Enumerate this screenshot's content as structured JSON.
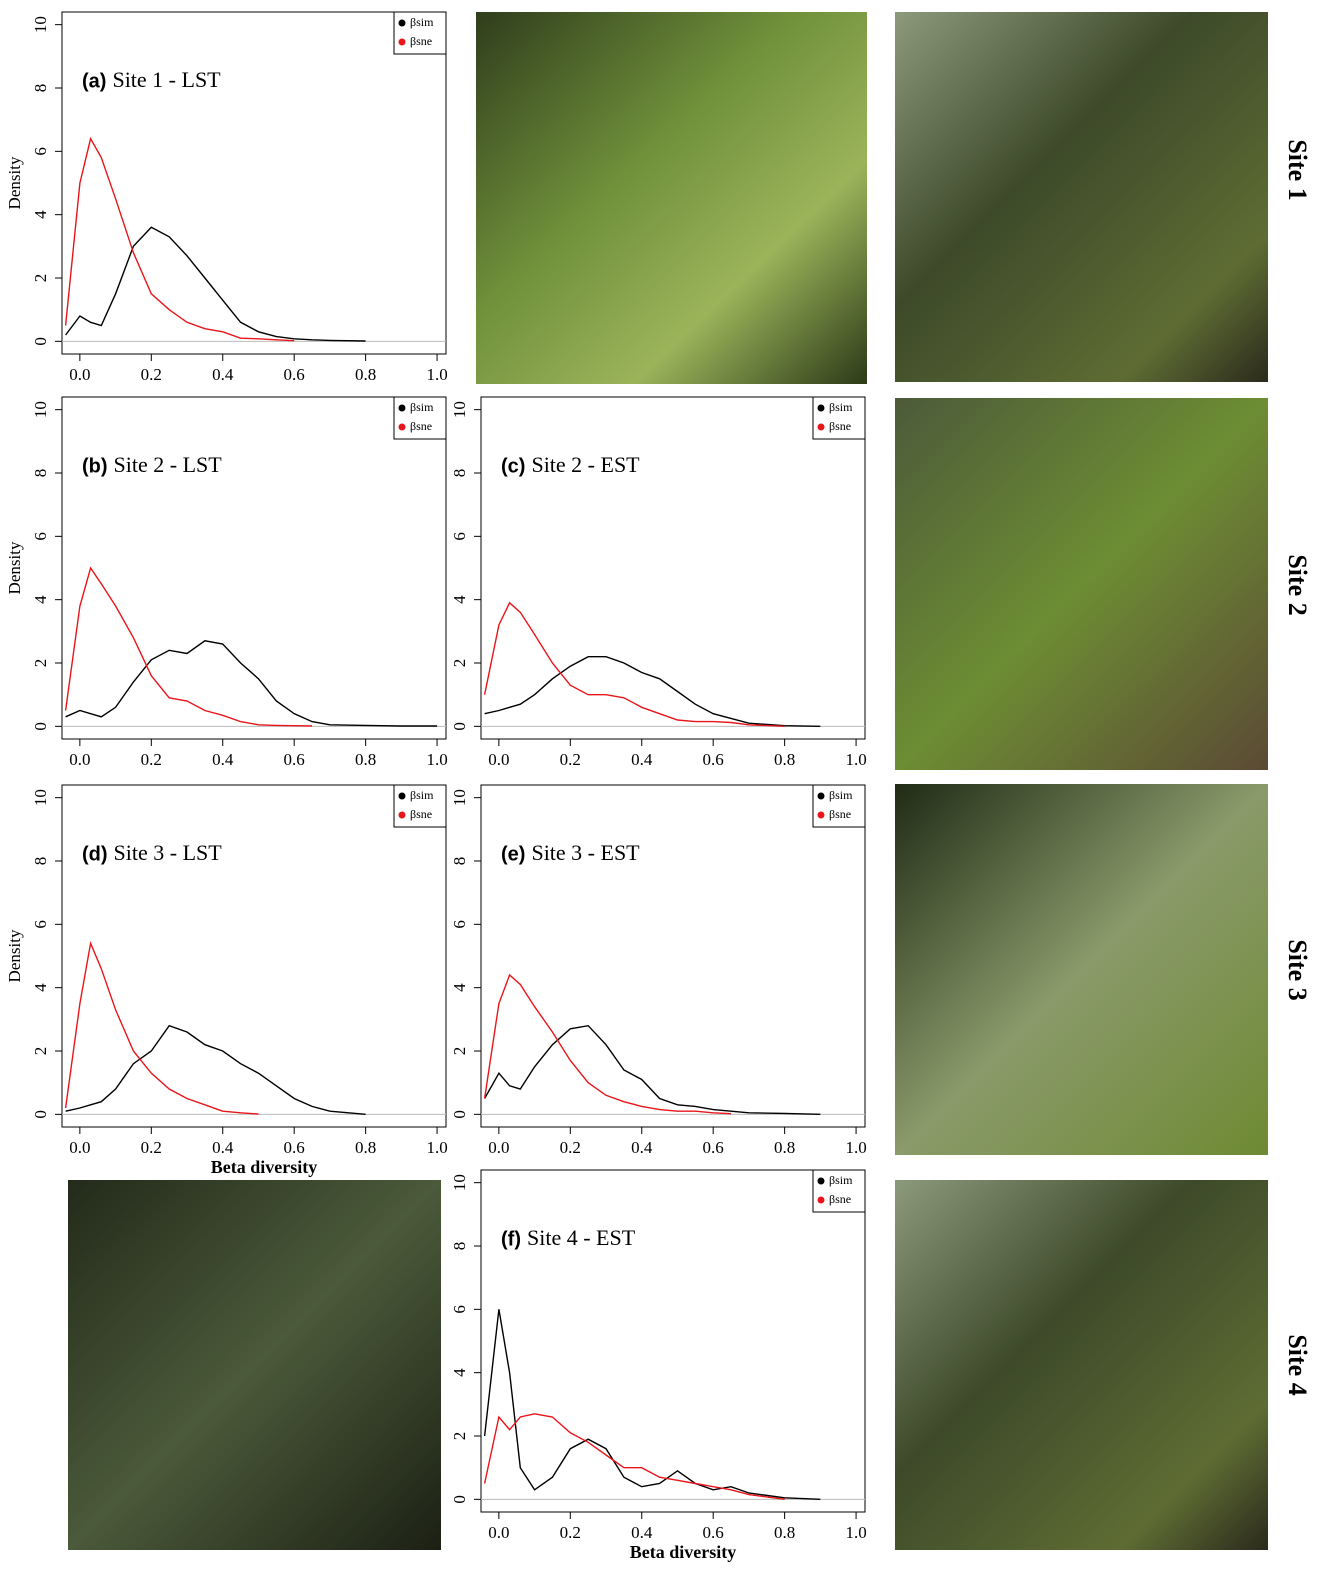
{
  "chart_data": [
    {
      "type": "line",
      "panel_label": "(a)",
      "title": "Site 1 - LST",
      "y_label": "Density",
      "legend": "upper right",
      "x": [
        -0.04,
        0,
        0.03,
        0.06,
        0.1,
        0.15,
        0.2,
        0.25,
        0.3,
        0.35,
        0.4,
        0.45,
        0.5,
        0.55,
        0.6,
        0.65,
        0.7,
        0.8,
        0.9,
        1.0
      ],
      "series": [
        {
          "name": "βsim",
          "color": "#000000",
          "values": [
            0.2,
            0.8,
            0.6,
            0.5,
            1.5,
            3.0,
            3.6,
            3.3,
            2.7,
            2.0,
            1.3,
            0.6,
            0.3,
            0.15,
            0.08,
            0.05,
            0.03,
            0.01,
            null,
            null
          ]
        },
        {
          "name": "βsne",
          "color": "#e8161b",
          "values": [
            0.5,
            5.0,
            6.4,
            5.8,
            4.5,
            2.8,
            1.5,
            1.0,
            0.6,
            0.4,
            0.3,
            0.1,
            0.08,
            0.05,
            0.02,
            null,
            null,
            null,
            null,
            null
          ]
        }
      ],
      "xlim": [
        -0.05,
        1.025
      ],
      "ylim": [
        -0.4,
        10.4
      ],
      "xticks": [
        {
          "value": 0,
          "label": "0.0"
        },
        0.2,
        0.4,
        0.6,
        0.8,
        {
          "value": 1,
          "label": "1.0"
        }
      ],
      "yticks": [
        0,
        2,
        4,
        6,
        8,
        10
      ]
    },
    {
      "type": "line",
      "panel_label": "(b)",
      "title": "Site 2 - LST",
      "y_label": "Density",
      "legend": "upper right",
      "x": [
        -0.04,
        0,
        0.03,
        0.06,
        0.1,
        0.15,
        0.2,
        0.25,
        0.3,
        0.35,
        0.4,
        0.45,
        0.5,
        0.55,
        0.6,
        0.65,
        0.7,
        0.8,
        0.9,
        1.0
      ],
      "series": [
        {
          "name": "βsim",
          "color": "#000000",
          "values": [
            0.3,
            0.5,
            0.4,
            0.3,
            0.6,
            1.4,
            2.1,
            2.4,
            2.3,
            2.7,
            2.6,
            2.0,
            1.5,
            0.8,
            0.4,
            0.15,
            0.05,
            0.03,
            0.01,
            0.01
          ]
        },
        {
          "name": "βsne",
          "color": "#e8161b",
          "values": [
            0.5,
            3.8,
            5.0,
            4.5,
            3.8,
            2.8,
            1.6,
            0.9,
            0.8,
            0.5,
            0.35,
            0.15,
            0.05,
            0.03,
            0.02,
            0.01,
            null,
            null,
            null,
            null
          ]
        }
      ],
      "xlim": [
        -0.05,
        1.025
      ],
      "ylim": [
        -0.4,
        10.4
      ],
      "xticks": [
        {
          "value": 0,
          "label": "0.0"
        },
        0.2,
        0.4,
        0.6,
        0.8,
        {
          "value": 1,
          "label": "1.0"
        }
      ],
      "yticks": [
        0,
        2,
        4,
        6,
        8,
        10
      ]
    },
    {
      "type": "line",
      "panel_label": "(c)",
      "title": "Site 2 - EST",
      "legend": "upper right",
      "x": [
        -0.04,
        0,
        0.03,
        0.06,
        0.1,
        0.15,
        0.2,
        0.25,
        0.3,
        0.35,
        0.4,
        0.45,
        0.5,
        0.55,
        0.6,
        0.65,
        0.7,
        0.8,
        0.9,
        1.0
      ],
      "series": [
        {
          "name": "βsim",
          "color": "#000000",
          "values": [
            0.4,
            0.5,
            0.6,
            0.7,
            1.0,
            1.5,
            1.9,
            2.2,
            2.2,
            2.0,
            1.7,
            1.5,
            1.1,
            0.7,
            0.4,
            0.25,
            0.1,
            0.02,
            0.0,
            null
          ]
        },
        {
          "name": "βsne",
          "color": "#e8161b",
          "values": [
            1.0,
            3.2,
            3.9,
            3.6,
            2.9,
            2.0,
            1.3,
            1.0,
            1.0,
            0.9,
            0.6,
            0.4,
            0.2,
            0.15,
            0.15,
            0.12,
            0.05,
            0.0,
            null,
            null
          ]
        }
      ],
      "xlim": [
        -0.05,
        1.025
      ],
      "ylim": [
        -0.4,
        10.4
      ],
      "xticks": [
        {
          "value": 0,
          "label": "0.0"
        },
        0.2,
        0.4,
        0.6,
        0.8,
        {
          "value": 1,
          "label": "1.0"
        }
      ],
      "yticks": [
        0,
        2,
        4,
        6,
        8,
        10
      ]
    },
    {
      "type": "line",
      "panel_label": "(d)",
      "title": "Site 3 - LST",
      "y_label": "Density",
      "x_label": "Beta diversity",
      "legend": "upper right",
      "x": [
        -0.04,
        0,
        0.03,
        0.06,
        0.1,
        0.15,
        0.2,
        0.25,
        0.3,
        0.35,
        0.4,
        0.45,
        0.5,
        0.55,
        0.6,
        0.65,
        0.7,
        0.8,
        0.9,
        1.0
      ],
      "series": [
        {
          "name": "βsim",
          "color": "#000000",
          "values": [
            0.1,
            0.2,
            0.3,
            0.4,
            0.8,
            1.6,
            2.0,
            2.8,
            2.6,
            2.2,
            2.0,
            1.6,
            1.3,
            0.9,
            0.5,
            0.25,
            0.1,
            0.0,
            null,
            null
          ]
        },
        {
          "name": "βsne",
          "color": "#e8161b",
          "values": [
            0.2,
            3.5,
            5.4,
            4.6,
            3.3,
            2.0,
            1.3,
            0.8,
            0.5,
            0.3,
            0.1,
            0.05,
            0.01,
            null,
            null,
            null,
            null,
            null,
            null,
            null
          ]
        }
      ],
      "xlim": [
        -0.05,
        1.025
      ],
      "ylim": [
        -0.4,
        10.4
      ],
      "xticks": [
        {
          "value": 0,
          "label": "0.0"
        },
        0.2,
        0.4,
        0.6,
        0.8,
        {
          "value": 1,
          "label": "1.0"
        }
      ],
      "yticks": [
        0,
        2,
        4,
        6,
        8,
        10
      ]
    },
    {
      "type": "line",
      "panel_label": "(e)",
      "title": "Site 3 - EST",
      "legend": "upper right",
      "x": [
        -0.04,
        0,
        0.03,
        0.06,
        0.1,
        0.15,
        0.2,
        0.25,
        0.3,
        0.35,
        0.4,
        0.45,
        0.5,
        0.55,
        0.6,
        0.65,
        0.7,
        0.8,
        0.9,
        1.0
      ],
      "series": [
        {
          "name": "βsim",
          "color": "#000000",
          "values": [
            0.5,
            1.3,
            0.9,
            0.8,
            1.5,
            2.2,
            2.7,
            2.8,
            2.2,
            1.4,
            1.1,
            0.5,
            0.3,
            0.25,
            0.15,
            0.1,
            0.05,
            0.03,
            0.0,
            null
          ]
        },
        {
          "name": "βsne",
          "color": "#e8161b",
          "values": [
            0.5,
            3.5,
            4.4,
            4.1,
            3.4,
            2.6,
            1.7,
            1.0,
            0.6,
            0.4,
            0.25,
            0.15,
            0.1,
            0.1,
            0.05,
            0.02,
            null,
            null,
            null,
            null
          ]
        }
      ],
      "xlim": [
        -0.05,
        1.025
      ],
      "ylim": [
        -0.4,
        10.4
      ],
      "xticks": [
        {
          "value": 0,
          "label": "0.0"
        },
        0.2,
        0.4,
        0.6,
        0.8,
        {
          "value": 1,
          "label": "1.0"
        }
      ],
      "yticks": [
        0,
        2,
        4,
        6,
        8,
        10
      ]
    },
    {
      "type": "line",
      "panel_label": "(f)",
      "title": "Site 4 - EST",
      "x_label": "Beta diversity",
      "legend": "upper right",
      "x": [
        -0.04,
        0,
        0.03,
        0.06,
        0.1,
        0.15,
        0.2,
        0.25,
        0.3,
        0.35,
        0.4,
        0.45,
        0.5,
        0.55,
        0.6,
        0.65,
        0.7,
        0.8,
        0.9,
        1.0
      ],
      "series": [
        {
          "name": "βsim",
          "color": "#000000",
          "values": [
            2.0,
            6.0,
            4.0,
            1.0,
            0.3,
            0.7,
            1.6,
            1.9,
            1.6,
            0.7,
            0.4,
            0.5,
            0.9,
            0.5,
            0.3,
            0.4,
            0.2,
            0.05,
            0.0,
            null
          ]
        },
        {
          "name": "βsne",
          "color": "#e8161b",
          "values": [
            0.5,
            2.6,
            2.2,
            2.6,
            2.7,
            2.6,
            2.1,
            1.8,
            1.4,
            1.0,
            1.0,
            0.7,
            0.6,
            0.5,
            0.4,
            0.3,
            0.15,
            0.0,
            null,
            null
          ]
        }
      ],
      "xlim": [
        -0.05,
        1.025
      ],
      "ylim": [
        -0.4,
        10.4
      ],
      "xticks": [
        {
          "value": 0,
          "label": "0.0"
        },
        0.2,
        0.4,
        0.6,
        0.8,
        {
          "value": 1,
          "label": "1.0"
        }
      ],
      "yticks": [
        0,
        2,
        4,
        6,
        8,
        10
      ]
    }
  ],
  "site_labels": [
    "Site 1",
    "Site 2",
    "Site 3",
    "Site 4"
  ]
}
